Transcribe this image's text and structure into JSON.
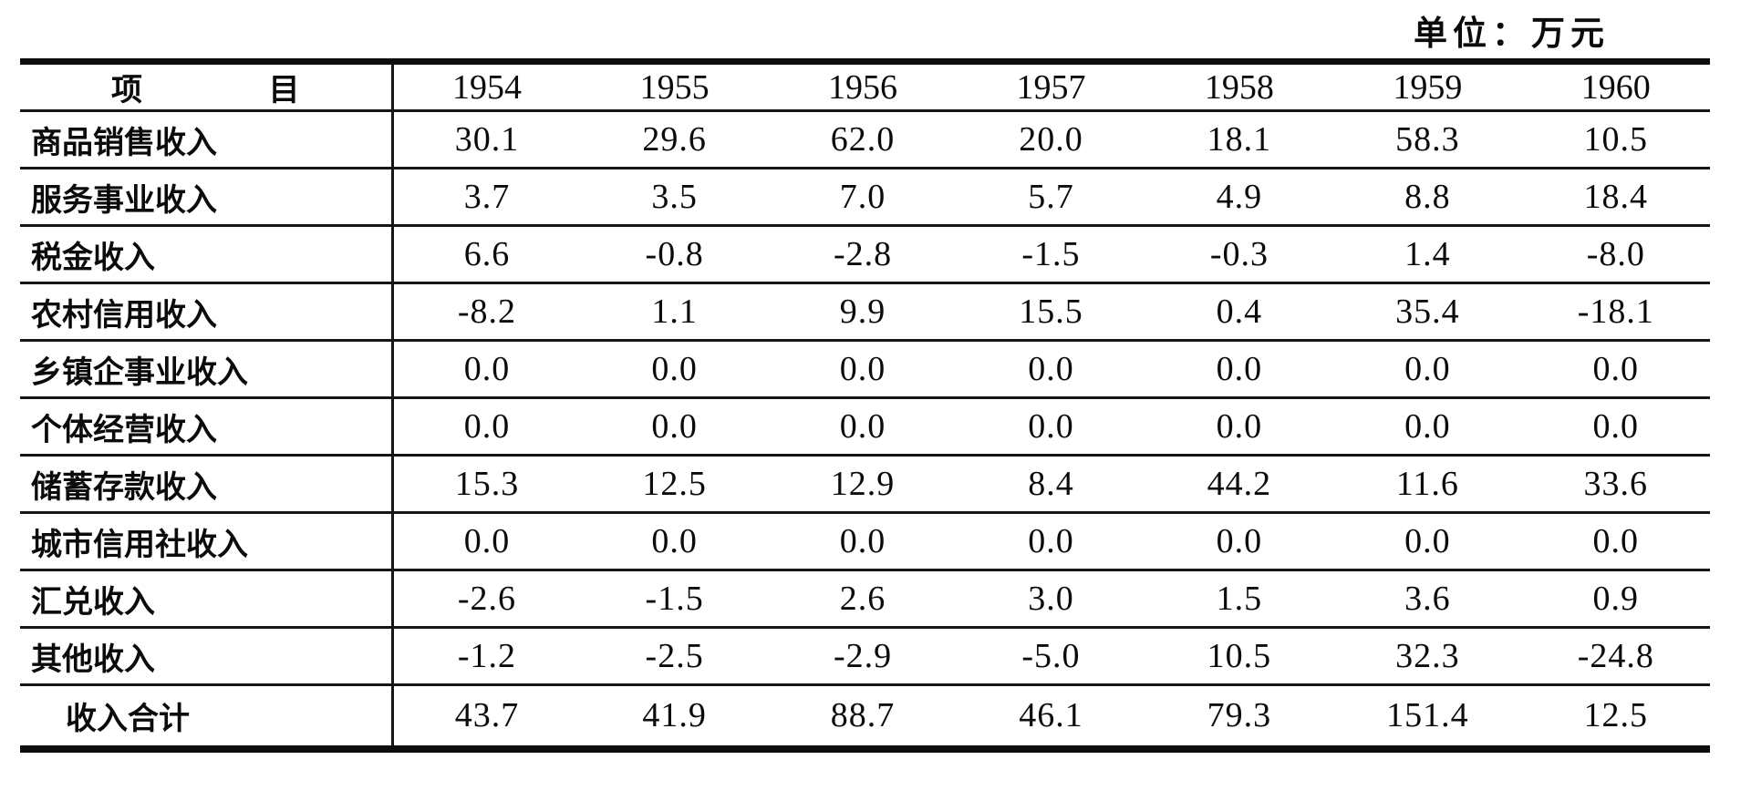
{
  "unit_label": "单位：万元",
  "table": {
    "header": {
      "item_label": "项 目",
      "years": [
        "1954",
        "1955",
        "1956",
        "1957",
        "1958",
        "1959",
        "1960"
      ]
    },
    "rows": [
      {
        "label": "商品销售收入",
        "values": [
          "30.1",
          "29.6",
          "62.0",
          "20.0",
          "18.1",
          "58.3",
          "10.5"
        ]
      },
      {
        "label": "服务事业收入",
        "values": [
          "3.7",
          "3.5",
          "7.0",
          "5.7",
          "4.9",
          "8.8",
          "18.4"
        ]
      },
      {
        "label": "税金收入",
        "values": [
          "6.6",
          "-0.8",
          "-2.8",
          "-1.5",
          "-0.3",
          "1.4",
          "-8.0"
        ]
      },
      {
        "label": "农村信用收入",
        "values": [
          "-8.2",
          "1.1",
          "9.9",
          "15.5",
          "0.4",
          "35.4",
          "-18.1"
        ]
      },
      {
        "label": "乡镇企事业收入",
        "values": [
          "0.0",
          "0.0",
          "0.0",
          "0.0",
          "0.0",
          "0.0",
          "0.0"
        ]
      },
      {
        "label": "个体经营收入",
        "values": [
          "0.0",
          "0.0",
          "0.0",
          "0.0",
          "0.0",
          "0.0",
          "0.0"
        ]
      },
      {
        "label": "储蓄存款收入",
        "values": [
          "15.3",
          "12.5",
          "12.9",
          "8.4",
          "44.2",
          "11.6",
          "33.6"
        ]
      },
      {
        "label": "城市信用社收入",
        "values": [
          "0.0",
          "0.0",
          "0.0",
          "0.0",
          "0.0",
          "0.0",
          "0.0"
        ]
      },
      {
        "label": "汇兑收入",
        "values": [
          "-2.6",
          "-1.5",
          "2.6",
          "3.0",
          "1.5",
          "3.6",
          "0.9"
        ]
      },
      {
        "label": "其他收入",
        "values": [
          "-1.2",
          "-2.5",
          "-2.9",
          "-5.0",
          "10.5",
          "32.3",
          "-24.8"
        ]
      }
    ],
    "total_row": {
      "label": "收入合计",
      "values": [
        "43.7",
        "41.9",
        "88.7",
        "46.1",
        "79.3",
        "151.4",
        "12.5"
      ]
    }
  }
}
